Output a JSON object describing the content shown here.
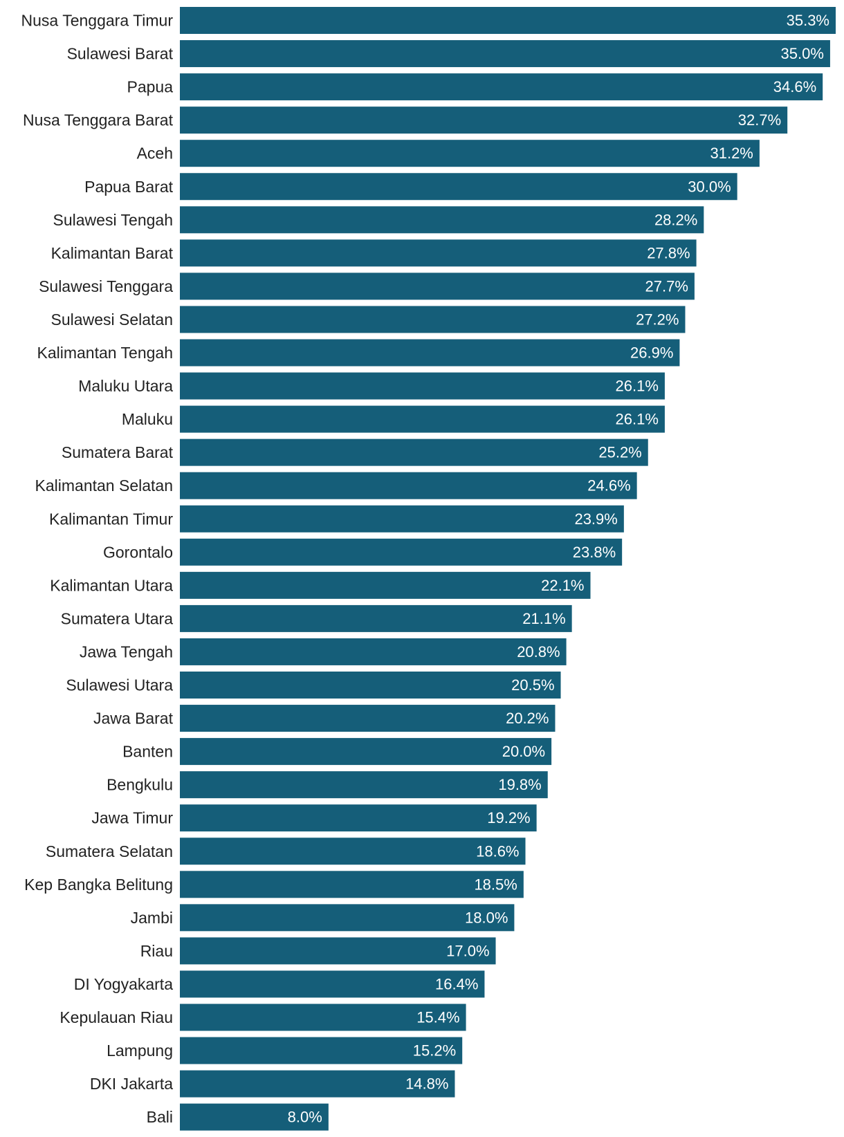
{
  "chart_data": {
    "type": "bar",
    "orientation": "horizontal",
    "title": "",
    "xlabel": "",
    "ylabel": "",
    "xlim": [
      0,
      35.3
    ],
    "grid": false,
    "legend": "none",
    "bar_color": "#155e79",
    "value_label_color": "#ffffff",
    "category_label_color": "#222222",
    "value_suffix": "%",
    "categories": [
      "Nusa Tenggara Timur",
      "Sulawesi Barat",
      "Papua",
      "Nusa Tenggara Barat",
      "Aceh",
      "Papua Barat",
      "Sulawesi Tengah",
      "Kalimantan Barat",
      "Sulawesi Tenggara",
      "Sulawesi Selatan",
      "Kalimantan Tengah",
      "Maluku Utara",
      "Maluku",
      "Sumatera Barat",
      "Kalimantan Selatan",
      "Kalimantan Timur",
      "Gorontalo",
      "Kalimantan Utara",
      "Sumatera Utara",
      "Jawa Tengah",
      "Sulawesi Utara",
      "Jawa Barat",
      "Banten",
      "Bengkulu",
      "Jawa Timur",
      "Sumatera Selatan",
      "Kep Bangka Belitung",
      "Jambi",
      "Riau",
      "DI Yogyakarta",
      "Kepulauan Riau",
      "Lampung",
      "DKI Jakarta",
      "Bali"
    ],
    "values": [
      35.3,
      35.0,
      34.6,
      32.7,
      31.2,
      30.0,
      28.2,
      27.8,
      27.7,
      27.2,
      26.9,
      26.1,
      26.1,
      25.2,
      24.6,
      23.9,
      23.8,
      22.1,
      21.1,
      20.8,
      20.5,
      20.2,
      20.0,
      19.8,
      19.2,
      18.6,
      18.5,
      18.0,
      17.0,
      16.4,
      15.4,
      15.2,
      14.8,
      8.0
    ],
    "value_labels": [
      "35.3%",
      "35.0%",
      "34.6%",
      "32.7%",
      "31.2%",
      "30.0%",
      "28.2%",
      "27.8%",
      "27.7%",
      "27.2%",
      "26.9%",
      "26.1%",
      "26.1%",
      "25.2%",
      "24.6%",
      "23.9%",
      "23.8%",
      "22.1%",
      "21.1%",
      "20.8%",
      "20.5%",
      "20.2%",
      "20.0%",
      "19.8%",
      "19.2%",
      "18.6%",
      "18.5%",
      "18.0%",
      "17.0%",
      "16.4%",
      "15.4%",
      "15.2%",
      "14.8%",
      "8.0%"
    ]
  }
}
